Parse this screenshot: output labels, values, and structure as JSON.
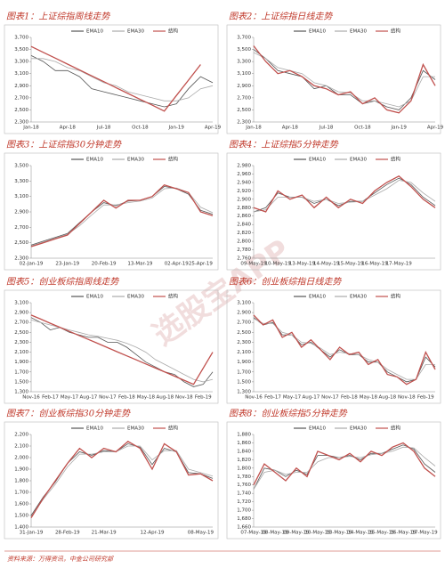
{
  "watermark": "选股宝APP",
  "source": "资料来源：万得资讯，中金公司研究部",
  "chart_data": [
    {
      "type": "line",
      "title": "图表1：上证综指周线走势",
      "categories": [
        "Jan-18",
        null,
        null,
        "Apr-18",
        null,
        null,
        "Jul-18",
        null,
        null,
        "Oct-18",
        null,
        null,
        "Jan-19",
        null,
        null,
        "Apr-19"
      ],
      "series": [
        {
          "name": "EMA10",
          "color": "#555555",
          "values": [
            3400,
            3300,
            3150,
            3150,
            3050,
            2850,
            2800,
            2750,
            2700,
            2650,
            2600,
            2550,
            2600,
            2850,
            3050,
            2950
          ]
        },
        {
          "name": "EMA30",
          "color": "#aaaaaa",
          "values": [
            3350,
            3350,
            3300,
            3200,
            3150,
            3050,
            2950,
            2900,
            2800,
            2750,
            2700,
            2650,
            2650,
            2700,
            2850,
            2900
          ]
        },
        {
          "name": "结构",
          "color": "#c0504d",
          "values": [
            3550,
            3453,
            3356,
            3258,
            3161,
            3064,
            2967,
            2869,
            2772,
            2675,
            2578,
            2480,
            2737,
            2993,
            3250,
            null
          ]
        }
      ],
      "ylim": [
        2300,
        3700
      ],
      "yticks": [
        {
          "value": 2300,
          "label": "2,300"
        },
        {
          "value": 2500,
          "label": "2,500"
        },
        {
          "value": 2700,
          "label": "2,700"
        },
        {
          "value": 2900,
          "label": "2,900"
        },
        {
          "value": 3100,
          "label": "3,100"
        },
        {
          "value": 3300,
          "label": "3,300"
        },
        {
          "value": 3500,
          "label": "3,500"
        },
        {
          "value": 3700,
          "label": "3,700"
        }
      ]
    },
    {
      "type": "line",
      "title": "图表2：上证综指日线走势",
      "categories": [
        "Jan-18",
        null,
        null,
        "Apr-18",
        null,
        null,
        "Jul-18",
        null,
        null,
        "Oct-18",
        null,
        null,
        "Jan-19",
        null,
        null,
        "Apr-19"
      ],
      "series": [
        {
          "name": "EMA10",
          "color": "#555555",
          "values": [
            3500,
            3350,
            3150,
            3100,
            3050,
            2850,
            2900,
            2750,
            2750,
            2600,
            2650,
            2550,
            2500,
            2700,
            3150,
            3000
          ]
        },
        {
          "name": "EMA30",
          "color": "#aaaaaa",
          "values": [
            3450,
            3350,
            3200,
            3150,
            3100,
            2950,
            2900,
            2800,
            2780,
            2650,
            2650,
            2600,
            2550,
            2650,
            3050,
            3050
          ]
        },
        {
          "name": "结构",
          "color": "#c0504d",
          "values": [
            3560,
            3300,
            3100,
            3150,
            3050,
            2900,
            2850,
            2750,
            2800,
            2600,
            2700,
            2500,
            2450,
            2650,
            3250,
            2900
          ]
        }
      ],
      "ylim": [
        2300,
        3700
      ],
      "yticks": [
        {
          "value": 2300,
          "label": "2,300"
        },
        {
          "value": 2500,
          "label": "2,500"
        },
        {
          "value": 2700,
          "label": "2,700"
        },
        {
          "value": 2900,
          "label": "2,900"
        },
        {
          "value": 3100,
          "label": "3,100"
        },
        {
          "value": 3300,
          "label": "3,300"
        },
        {
          "value": 3500,
          "label": "3,500"
        },
        {
          "value": 3700,
          "label": "3,700"
        }
      ]
    },
    {
      "type": "line",
      "title": "图表3：上证综指30分钟走势",
      "categories": [
        "02-Jan-19",
        null,
        null,
        "23-Jan-19",
        null,
        null,
        "20-Feb-19",
        null,
        null,
        "13-Mar-19",
        null,
        null,
        "02-Apr-19",
        null,
        "25-Apr-19",
        null
      ],
      "series": [
        {
          "name": "EMA10",
          "color": "#555555",
          "values": [
            2470,
            2520,
            2570,
            2620,
            2760,
            2900,
            3020,
            2980,
            3040,
            3050,
            3100,
            3230,
            3200,
            3130,
            2920,
            2870
          ]
        },
        {
          "name": "EMA30",
          "color": "#aaaaaa",
          "values": [
            2460,
            2510,
            2560,
            2610,
            2720,
            2860,
            2990,
            2990,
            3020,
            3040,
            3080,
            3200,
            3210,
            3150,
            2960,
            2890
          ]
        },
        {
          "name": "结构",
          "color": "#c0504d",
          "values": [
            2450,
            2500,
            2550,
            2600,
            2750,
            2900,
            3050,
            2950,
            3050,
            3050,
            3100,
            3250,
            3200,
            3150,
            2900,
            2850
          ]
        }
      ],
      "ylim": [
        2300,
        3500
      ],
      "yticks": [
        {
          "value": 2300,
          "label": "2,300"
        },
        {
          "value": 2500,
          "label": "2,500"
        },
        {
          "value": 2700,
          "label": "2,700"
        },
        {
          "value": 2900,
          "label": "2,900"
        },
        {
          "value": 3100,
          "label": "3,100"
        },
        {
          "value": 3300,
          "label": "3,300"
        },
        {
          "value": 3500,
          "label": "3,500"
        }
      ]
    },
    {
      "type": "line",
      "title": "图表4：上证综指5分钟走势",
      "categories": [
        "09-May-19",
        null,
        "10-May-19",
        null,
        "13-May-19",
        null,
        "14-May-19",
        null,
        "15-May-19",
        null,
        "16-May-19",
        null,
        "17-May-19",
        null,
        null,
        null
      ],
      "series": [
        {
          "name": "EMA10",
          "color": "#555555",
          "values": [
            2870,
            2880,
            2915,
            2905,
            2905,
            2890,
            2900,
            2885,
            2895,
            2895,
            2915,
            2935,
            2950,
            2935,
            2905,
            2885
          ]
        },
        {
          "name": "EMA30",
          "color": "#aaaaaa",
          "values": [
            2870,
            2875,
            2905,
            2905,
            2905,
            2895,
            2900,
            2890,
            2893,
            2895,
            2910,
            2925,
            2945,
            2940,
            2915,
            2895
          ]
        },
        {
          "name": "结构",
          "color": "#c0504d",
          "values": [
            2880,
            2870,
            2920,
            2900,
            2910,
            2880,
            2905,
            2880,
            2900,
            2890,
            2920,
            2940,
            2955,
            2930,
            2900,
            2880
          ]
        }
      ],
      "ylim": [
        2760,
        2980
      ],
      "yticks": [
        {
          "value": 2760,
          "label": "2,760"
        },
        {
          "value": 2780,
          "label": "2,780"
        },
        {
          "value": 2800,
          "label": "2,800"
        },
        {
          "value": 2820,
          "label": "2,820"
        },
        {
          "value": 2840,
          "label": "2,840"
        },
        {
          "value": 2860,
          "label": "2,860"
        },
        {
          "value": 2880,
          "label": "2,880"
        },
        {
          "value": 2900,
          "label": "2,900"
        },
        {
          "value": 2920,
          "label": "2,920"
        },
        {
          "value": 2940,
          "label": "2,940"
        },
        {
          "value": 2960,
          "label": "2,960"
        },
        {
          "value": 2980,
          "label": "2,980"
        }
      ]
    },
    {
      "type": "line",
      "title": "图表5：创业板综指周线走势",
      "categories": [
        "Nov-16",
        null,
        "Feb-17",
        null,
        "May-17",
        null,
        "Aug-17",
        null,
        "Nov-17",
        null,
        "Feb-18",
        null,
        "May-18",
        null,
        "Aug-18",
        null,
        "Nov-18",
        null,
        "Feb-19",
        null
      ],
      "series": [
        {
          "name": "EMA10",
          "color": "#555555",
          "values": [
            2800,
            2700,
            2550,
            2600,
            2500,
            2450,
            2400,
            2400,
            2300,
            2300,
            2200,
            2050,
            1900,
            1800,
            1700,
            1650,
            1500,
            1400,
            1450,
            1700
          ]
        },
        {
          "name": "EMA30",
          "color": "#aaaaaa",
          "values": [
            2750,
            2700,
            2650,
            2600,
            2550,
            2500,
            2450,
            2420,
            2380,
            2340,
            2280,
            2200,
            2100,
            1950,
            1850,
            1750,
            1650,
            1550,
            1500,
            1550
          ]
        },
        {
          "name": "结构",
          "color": "#c0504d",
          "values": [
            2850,
            2768,
            2685,
            2603,
            2521,
            2438,
            2356,
            2274,
            2191,
            2109,
            2026,
            1944,
            1862,
            1779,
            1697,
            1615,
            1532,
            1450,
            1775,
            2100
          ]
        }
      ],
      "ylim": [
        1300,
        3100
      ],
      "yticks": [
        {
          "value": 1300,
          "label": "1,300"
        },
        {
          "value": 1500,
          "label": "1,500"
        },
        {
          "value": 1700,
          "label": "1,700"
        },
        {
          "value": 1900,
          "label": "1,900"
        },
        {
          "value": 2100,
          "label": "2,100"
        },
        {
          "value": 2300,
          "label": "2,300"
        },
        {
          "value": 2500,
          "label": "2,500"
        },
        {
          "value": 2700,
          "label": "2,700"
        },
        {
          "value": 2900,
          "label": "2,900"
        },
        {
          "value": 3100,
          "label": "3,100"
        }
      ]
    },
    {
      "type": "line",
      "title": "图表6：创业板综指日线走势",
      "categories": [
        "Nov-16",
        null,
        "Feb-17",
        null,
        "May-17",
        null,
        "Aug-17",
        null,
        "Nov-17",
        null,
        "Feb-18",
        null,
        "May-18",
        null,
        "Aug-18",
        null,
        "Nov-18",
        null,
        "Feb-19",
        null
      ],
      "series": [
        {
          "name": "EMA10",
          "color": "#555555",
          "values": [
            2800,
            2650,
            2700,
            2450,
            2450,
            2250,
            2300,
            2150,
            2000,
            2150,
            2050,
            2050,
            1900,
            1900,
            1700,
            1600,
            1500,
            1550,
            2000,
            1800
          ]
        },
        {
          "name": "EMA30",
          "color": "#aaaaaa",
          "values": [
            2780,
            2680,
            2680,
            2500,
            2450,
            2300,
            2280,
            2180,
            2050,
            2100,
            2070,
            2050,
            1950,
            1900,
            1750,
            1650,
            1550,
            1550,
            1850,
            1850
          ]
        },
        {
          "name": "结构",
          "color": "#c0504d",
          "values": [
            2850,
            2650,
            2750,
            2400,
            2500,
            2200,
            2350,
            2150,
            1950,
            2200,
            2050,
            2100,
            1850,
            1950,
            1650,
            1600,
            1450,
            1550,
            2100,
            1750
          ]
        }
      ],
      "ylim": [
        1300,
        3100
      ],
      "yticks": [
        {
          "value": 1300,
          "label": "1,300"
        },
        {
          "value": 1500,
          "label": "1,500"
        },
        {
          "value": 1700,
          "label": "1,700"
        },
        {
          "value": 1900,
          "label": "1,900"
        },
        {
          "value": 2100,
          "label": "2,100"
        },
        {
          "value": 2300,
          "label": "2,300"
        },
        {
          "value": 2500,
          "label": "2,500"
        },
        {
          "value": 2700,
          "label": "2,700"
        },
        {
          "value": 2900,
          "label": "2,900"
        },
        {
          "value": 3100,
          "label": "3,100"
        }
      ]
    },
    {
      "type": "line",
      "title": "图表7：创业板综指30分钟走势",
      "categories": [
        "31-Jan-19",
        null,
        null,
        "28-Feb-19",
        null,
        null,
        "21-Mar-19",
        null,
        null,
        null,
        "12-Apr-19",
        null,
        null,
        null,
        "08-May-19",
        null
      ],
      "series": [
        {
          "name": "EMA10",
          "color": "#555555",
          "values": [
            1500,
            1660,
            1790,
            1950,
            2050,
            2020,
            2060,
            2050,
            2120,
            2090,
            1940,
            2080,
            2050,
            1870,
            1860,
            1820
          ]
        },
        {
          "name": "EMA30",
          "color": "#aaaaaa",
          "values": [
            1490,
            1640,
            1770,
            1920,
            2030,
            2030,
            2050,
            2050,
            2100,
            2100,
            1980,
            2060,
            2060,
            1900,
            1870,
            1840
          ]
        },
        {
          "name": "结构",
          "color": "#c0504d",
          "values": [
            1480,
            1650,
            1800,
            1950,
            2080,
            2000,
            2080,
            2050,
            2140,
            2080,
            1900,
            2120,
            2050,
            1850,
            1860,
            1800
          ]
        }
      ],
      "ylim": [
        1400,
        2200
      ],
      "yticks": [
        {
          "value": 1400,
          "label": "1,400"
        },
        {
          "value": 1500,
          "label": "1,500"
        },
        {
          "value": 1600,
          "label": "1,600"
        },
        {
          "value": 1700,
          "label": "1,700"
        },
        {
          "value": 1800,
          "label": "1,800"
        },
        {
          "value": 1900,
          "label": "1,900"
        },
        {
          "value": 2000,
          "label": "2,000"
        },
        {
          "value": 2100,
          "label": "2,100"
        },
        {
          "value": 2200,
          "label": "2,200"
        }
      ]
    },
    {
      "type": "line",
      "title": "图表8：创业板综指5分钟走势",
      "categories": [
        "07-May-19",
        null,
        "08-May-19",
        null,
        "09-May-19",
        null,
        "10-May-19",
        null,
        "13-May-19",
        null,
        "14-May-19",
        null,
        "15-May-19",
        null,
        "16-May-19",
        null,
        "17-May-19",
        null
      ],
      "series": [
        {
          "name": "EMA10",
          "color": "#555555",
          "values": [
            1750,
            1800,
            1795,
            1780,
            1795,
            1785,
            1830,
            1830,
            1825,
            1830,
            1820,
            1835,
            1835,
            1845,
            1855,
            1845,
            1810,
            1790
          ]
        },
        {
          "name": "EMA30",
          "color": "#aaaaaa",
          "values": [
            1750,
            1790,
            1795,
            1785,
            1790,
            1790,
            1815,
            1825,
            1825,
            1828,
            1825,
            1832,
            1835,
            1840,
            1850,
            1848,
            1825,
            1805
          ]
        },
        {
          "name": "结构",
          "color": "#c0504d",
          "values": [
            1760,
            1810,
            1790,
            1770,
            1800,
            1780,
            1840,
            1830,
            1820,
            1835,
            1815,
            1840,
            1830,
            1850,
            1860,
            1840,
            1800,
            1780
          ]
        }
      ],
      "ylim": [
        1660,
        1880
      ],
      "yticks": [
        {
          "value": 1660,
          "label": "1,660"
        },
        {
          "value": 1680,
          "label": "1,680"
        },
        {
          "value": 1700,
          "label": "1,700"
        },
        {
          "value": 1720,
          "label": "1,720"
        },
        {
          "value": 1740,
          "label": "1,740"
        },
        {
          "value": 1760,
          "label": "1,760"
        },
        {
          "value": 1780,
          "label": "1,780"
        },
        {
          "value": 1800,
          "label": "1,800"
        },
        {
          "value": 1820,
          "label": "1,820"
        },
        {
          "value": 1840,
          "label": "1,840"
        },
        {
          "value": 1860,
          "label": "1,860"
        },
        {
          "value": 1880,
          "label": "1,880"
        }
      ]
    }
  ]
}
